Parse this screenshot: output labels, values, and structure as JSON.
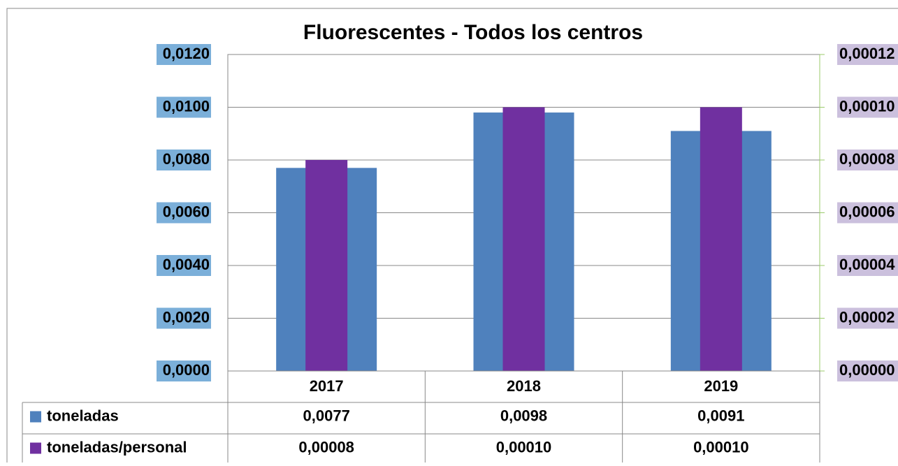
{
  "chart_data": {
    "type": "bar",
    "title": "Fluorescentes - Todos los centros",
    "categories": [
      "2017",
      "2018",
      "2019"
    ],
    "series": [
      {
        "name": "toneladas",
        "color": "#4f81bd",
        "values": [
          0.0077,
          0.0098,
          0.0091
        ],
        "value_labels": [
          "0,0077",
          "0,0098",
          "0,0091"
        ]
      },
      {
        "name": "toneladas/personal",
        "color": "#7030a0",
        "axis": "y2",
        "values": [
          8e-05,
          0.0001,
          0.0001
        ],
        "value_labels": [
          "0,00008",
          "0,00010",
          "0,00010"
        ]
      }
    ],
    "ylim": [
      0,
      0.012
    ],
    "yticks": [
      {
        "value": 0,
        "label": "0,0000"
      },
      {
        "value": 0.002,
        "label": "0,0020"
      },
      {
        "value": 0.004,
        "label": "0,0040"
      },
      {
        "value": 0.006,
        "label": "0,0060"
      },
      {
        "value": 0.008,
        "label": "0,0080"
      },
      {
        "value": 0.01,
        "label": "0,0100"
      },
      {
        "value": 0.012,
        "label": "0,0120"
      }
    ],
    "y2lim": [
      0,
      0.00012
    ],
    "y2ticks": [
      {
        "value": 0,
        "label": "0,00000"
      },
      {
        "value": 2e-05,
        "label": "0,00002"
      },
      {
        "value": 4e-05,
        "label": "0,00004"
      },
      {
        "value": 6e-05,
        "label": "0,00006"
      },
      {
        "value": 8e-05,
        "label": "0,00008"
      },
      {
        "value": 0.0001,
        "label": "0,00010"
      },
      {
        "value": 0.00012,
        "label": "0,00012"
      }
    ],
    "grid": true
  }
}
